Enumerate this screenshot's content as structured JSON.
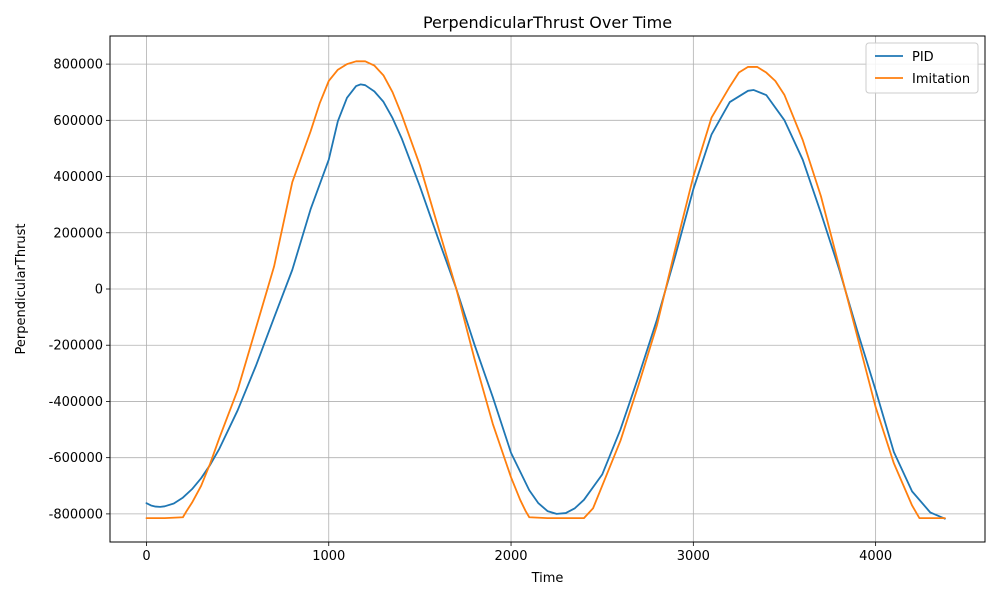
{
  "chart_data": {
    "type": "line",
    "title": "PerpendicularThrust Over Time",
    "xlabel": "Time",
    "ylabel": "PerpendicularThrust",
    "xlim": [
      -200,
      4600
    ],
    "ylim": [
      -900000,
      900000
    ],
    "xticks": [
      0,
      1000,
      2000,
      3000,
      4000
    ],
    "yticks": [
      -800000,
      -600000,
      -400000,
      -200000,
      0,
      200000,
      400000,
      600000,
      800000
    ],
    "grid": true,
    "legend_position": "top-right",
    "series": [
      {
        "name": "PID",
        "color": "#1f77b4",
        "points": [
          [
            0,
            -762000
          ],
          [
            25,
            -770000
          ],
          [
            50,
            -774000
          ],
          [
            75,
            -775000
          ],
          [
            100,
            -773000
          ],
          [
            150,
            -763000
          ],
          [
            200,
            -742000
          ],
          [
            250,
            -712000
          ],
          [
            300,
            -673000
          ],
          [
            350,
            -625000
          ],
          [
            400,
            -568000
          ],
          [
            500,
            -432000
          ],
          [
            600,
            -274000
          ],
          [
            700,
            -102000
          ],
          [
            800,
            68000
          ],
          [
            900,
            283000
          ],
          [
            1000,
            460000
          ],
          [
            1050,
            597000
          ],
          [
            1100,
            680000
          ],
          [
            1150,
            722000
          ],
          [
            1175,
            728000
          ],
          [
            1200,
            725000
          ],
          [
            1250,
            703000
          ],
          [
            1300,
            666000
          ],
          [
            1350,
            608000
          ],
          [
            1400,
            536000
          ],
          [
            1500,
            365000
          ],
          [
            1600,
            180000
          ],
          [
            1700,
            0
          ],
          [
            1800,
            -199000
          ],
          [
            1900,
            -385000
          ],
          [
            2000,
            -583000
          ],
          [
            2100,
            -716000
          ],
          [
            2150,
            -762000
          ],
          [
            2200,
            -790000
          ],
          [
            2250,
            -800000
          ],
          [
            2300,
            -797000
          ],
          [
            2350,
            -780000
          ],
          [
            2400,
            -750000
          ],
          [
            2500,
            -660000
          ],
          [
            2600,
            -500000
          ],
          [
            2700,
            -310000
          ],
          [
            2800,
            -110000
          ],
          [
            2900,
            115000
          ],
          [
            3000,
            355000
          ],
          [
            3100,
            550000
          ],
          [
            3200,
            665000
          ],
          [
            3300,
            705000
          ],
          [
            3330,
            708000
          ],
          [
            3400,
            690000
          ],
          [
            3500,
            600000
          ],
          [
            3600,
            460000
          ],
          [
            3700,
            270000
          ],
          [
            3800,
            70000
          ],
          [
            3900,
            -150000
          ],
          [
            4000,
            -360000
          ],
          [
            4100,
            -580000
          ],
          [
            4200,
            -720000
          ],
          [
            4300,
            -795000
          ],
          [
            4380,
            -817000
          ]
        ]
      },
      {
        "name": "Imitation",
        "color": "#ff7f0e",
        "points": [
          [
            0,
            -815000
          ],
          [
            100,
            -815000
          ],
          [
            200,
            -812000
          ],
          [
            220,
            -790000
          ],
          [
            250,
            -760000
          ],
          [
            300,
            -700000
          ],
          [
            350,
            -620000
          ],
          [
            400,
            -530000
          ],
          [
            500,
            -360000
          ],
          [
            600,
            -140000
          ],
          [
            700,
            80000
          ],
          [
            800,
            380000
          ],
          [
            850,
            470000
          ],
          [
            900,
            560000
          ],
          [
            950,
            660000
          ],
          [
            1000,
            740000
          ],
          [
            1050,
            780000
          ],
          [
            1100,
            800000
          ],
          [
            1150,
            810000
          ],
          [
            1200,
            810000
          ],
          [
            1250,
            795000
          ],
          [
            1300,
            760000
          ],
          [
            1350,
            700000
          ],
          [
            1400,
            620000
          ],
          [
            1500,
            440000
          ],
          [
            1600,
            220000
          ],
          [
            1700,
            0
          ],
          [
            1800,
            -250000
          ],
          [
            1900,
            -480000
          ],
          [
            2000,
            -670000
          ],
          [
            2050,
            -750000
          ],
          [
            2080,
            -790000
          ],
          [
            2100,
            -812000
          ],
          [
            2200,
            -815000
          ],
          [
            2300,
            -815000
          ],
          [
            2400,
            -815000
          ],
          [
            2450,
            -780000
          ],
          [
            2500,
            -700000
          ],
          [
            2600,
            -540000
          ],
          [
            2700,
            -340000
          ],
          [
            2800,
            -130000
          ],
          [
            2900,
            140000
          ],
          [
            3000,
            400000
          ],
          [
            3100,
            610000
          ],
          [
            3200,
            720000
          ],
          [
            3250,
            770000
          ],
          [
            3300,
            790000
          ],
          [
            3350,
            790000
          ],
          [
            3400,
            770000
          ],
          [
            3450,
            740000
          ],
          [
            3500,
            690000
          ],
          [
            3600,
            530000
          ],
          [
            3700,
            330000
          ],
          [
            3800,
            80000
          ],
          [
            3900,
            -170000
          ],
          [
            4000,
            -420000
          ],
          [
            4100,
            -620000
          ],
          [
            4200,
            -770000
          ],
          [
            4240,
            -815000
          ],
          [
            4380,
            -815000
          ]
        ]
      }
    ]
  }
}
